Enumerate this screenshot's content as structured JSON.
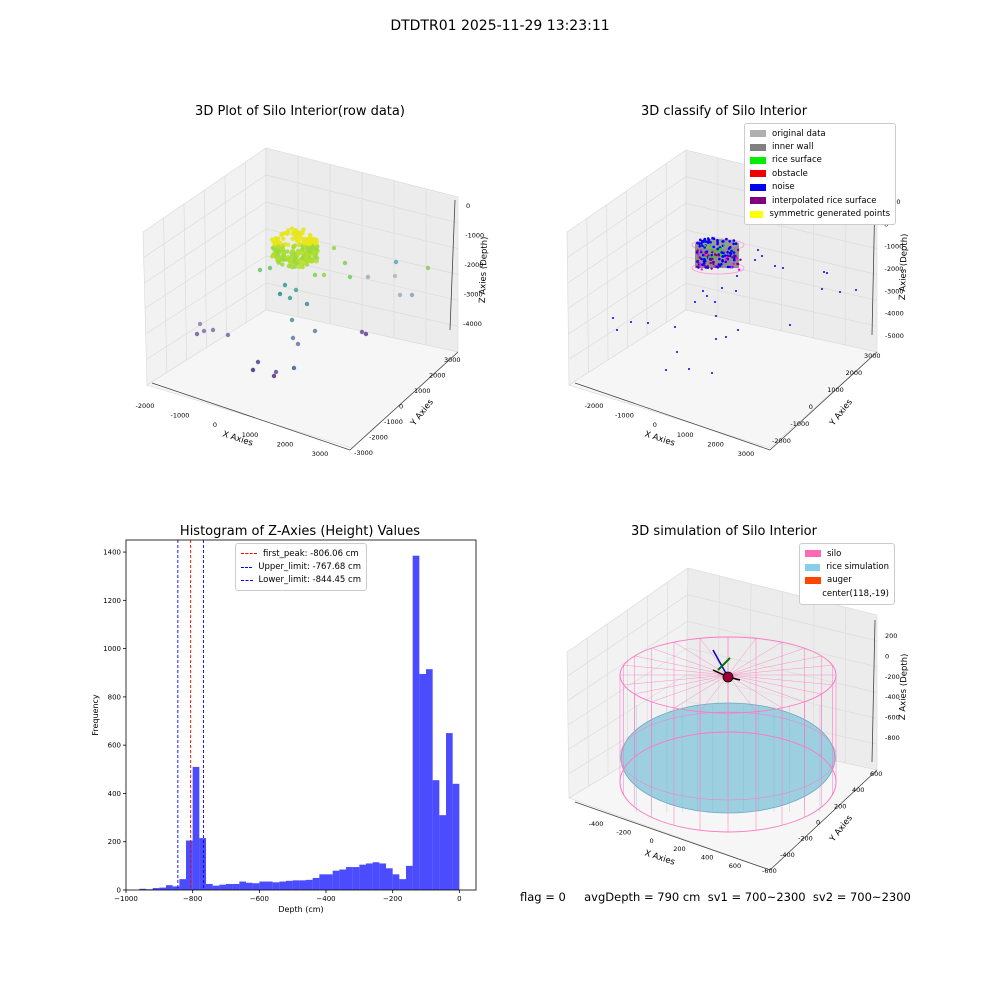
{
  "figure": {
    "suptitle": "DTDTR01 2025-11-29 13:23:11",
    "footer": "flag = 0     avgDepth = 790 cm  sv1 = 700~2300  sv2 = 700~2300"
  },
  "panels": {
    "raw": {
      "title": "3D Plot of Silo Interior(row data)",
      "xlabel": "X Axies",
      "ylabel": "Y Axies",
      "zlabel": "Z Axies (Depth)",
      "xticks": [
        "-2000",
        "-1000",
        "0",
        "1000",
        "2000",
        "3000"
      ],
      "yticks": [
        "-3000",
        "-2000",
        "-1000",
        "0",
        "1000",
        "2000",
        "3000"
      ],
      "zticks": [
        "0",
        "-1000",
        "-2000",
        "-3000",
        "-4000"
      ]
    },
    "classify": {
      "title": "3D classify of Silo Interior",
      "xlabel": "X Axies",
      "ylabel": "Y Axies",
      "zlabel": "Z Axies (Depth)",
      "xticks": [
        "-2000",
        "-1000",
        "0",
        "1000",
        "2000",
        "3000"
      ],
      "yticks": [
        "-2000",
        "-1000",
        "0",
        "1000",
        "2000",
        "3000"
      ],
      "zticks": [
        "1000",
        "0",
        "-1000",
        "-2000",
        "-3000",
        "-4000",
        "-5000"
      ],
      "legend": [
        {
          "label": "original data",
          "color": "#b0b0b0"
        },
        {
          "label": "inner wall",
          "color": "#808080"
        },
        {
          "label": "rice surface",
          "color": "#00ee00"
        },
        {
          "label": "obstacle",
          "color": "#ee0000"
        },
        {
          "label": "noise",
          "color": "#0000ee"
        },
        {
          "label": "interpolated rice surface",
          "color": "#800080"
        },
        {
          "label": "symmetric generated points",
          "color": "#ffff00"
        }
      ]
    },
    "simulation": {
      "title": "3D simulation of Silo Interior",
      "xlabel": "X Axies",
      "ylabel": "Y Axies",
      "zlabel": "Z Axies (Depth)",
      "xticks": [
        "-400",
        "-200",
        "0",
        "200",
        "400",
        "600"
      ],
      "yticks": [
        "-600",
        "-400",
        "-200",
        "0",
        "200",
        "400",
        "600"
      ],
      "zticks": [
        "200",
        "0",
        "-200",
        "-400",
        "-600",
        "-800"
      ],
      "legend": [
        {
          "label": "silo",
          "color": "#ff69b4"
        },
        {
          "label": "rice simulation",
          "color": "#87ceeb"
        },
        {
          "label": "auger",
          "color": "#ff4500"
        },
        {
          "label": "center(118,-19)",
          "color": ""
        }
      ]
    }
  },
  "chart_data": [
    {
      "type": "histogram",
      "title": "Histogram of Z-Axies (Height) Values",
      "xlabel": "Depth (cm)",
      "ylabel": "Frequency",
      "xlim": [
        -1000,
        50
      ],
      "ylim": [
        0,
        1450
      ],
      "xticks": [
        -1000,
        -800,
        -600,
        -400,
        -200,
        0
      ],
      "yticks": [
        0,
        200,
        400,
        600,
        800,
        1000,
        1200,
        1400
      ],
      "bar_color": "#0000ff",
      "bin_width": 20,
      "bins_start": [
        -960,
        -940,
        -920,
        -900,
        -880,
        -860,
        -840,
        -820,
        -800,
        -780,
        -760,
        -740,
        -720,
        -700,
        -680,
        -660,
        -640,
        -620,
        -600,
        -580,
        -560,
        -540,
        -520,
        -500,
        -480,
        -460,
        -440,
        -420,
        -400,
        -380,
        -360,
        -340,
        -320,
        -300,
        -280,
        -260,
        -240,
        -220,
        -200,
        -180,
        -160,
        -140,
        -120,
        -100,
        -80,
        -60,
        -40,
        -20
      ],
      "counts": [
        5,
        3,
        8,
        10,
        20,
        15,
        45,
        205,
        510,
        215,
        25,
        18,
        22,
        25,
        25,
        35,
        30,
        28,
        35,
        35,
        32,
        35,
        38,
        40,
        40,
        42,
        50,
        65,
        65,
        80,
        85,
        95,
        95,
        105,
        110,
        115,
        110,
        90,
        65,
        45,
        100,
        1385,
        895,
        915,
        455,
        310,
        650,
        440
      ],
      "vlines": [
        {
          "label": "first_peak: -806.06 cm",
          "x": -806.06,
          "color": "#ff0000"
        },
        {
          "label": "Upper_limit: -767.68 cm",
          "x": -767.68,
          "color": "#0000ff"
        },
        {
          "label": "Lower_limit: -844.45 cm",
          "x": -844.45,
          "color": "#0000ff"
        }
      ]
    }
  ]
}
